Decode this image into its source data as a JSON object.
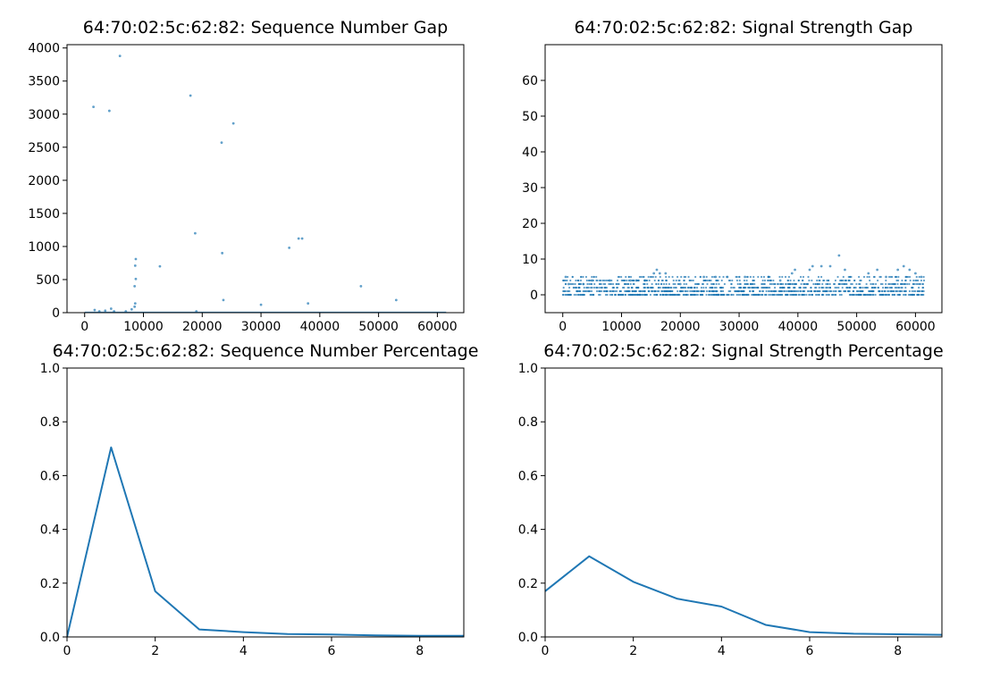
{
  "chart_data": [
    {
      "type": "scatter",
      "title": "64:70:02:5c:62:82: Sequence Number Gap",
      "xlabel": "",
      "ylabel": "",
      "xlim": [
        -3000,
        64500
      ],
      "ylim": [
        0,
        4050
      ],
      "xticks": [
        0,
        10000,
        20000,
        30000,
        40000,
        50000,
        60000
      ],
      "yticks": [
        0,
        500,
        1000,
        1500,
        2000,
        2500,
        3000,
        3500,
        4000
      ],
      "grid": false,
      "marker_color": "#1f77b4",
      "baseline_band": {
        "from_x": 0,
        "to_x": 61500,
        "y": 0
      },
      "points": [
        [
          1500,
          3110
        ],
        [
          1700,
          40
        ],
        [
          2500,
          20
        ],
        [
          3500,
          30
        ],
        [
          4200,
          3050
        ],
        [
          4500,
          60
        ],
        [
          5000,
          20
        ],
        [
          6000,
          3880
        ],
        [
          7000,
          20
        ],
        [
          8000,
          50
        ],
        [
          8500,
          90
        ],
        [
          8600,
          140
        ],
        [
          8500,
          400
        ],
        [
          8700,
          510
        ],
        [
          8600,
          710
        ],
        [
          8700,
          810
        ],
        [
          12800,
          700
        ],
        [
          18000,
          3280
        ],
        [
          18800,
          1200
        ],
        [
          19000,
          20
        ],
        [
          23300,
          2570
        ],
        [
          23400,
          900
        ],
        [
          23600,
          190
        ],
        [
          25300,
          2860
        ],
        [
          30000,
          120
        ],
        [
          34800,
          980
        ],
        [
          36400,
          1120
        ],
        [
          37000,
          1120
        ],
        [
          38000,
          140
        ],
        [
          47000,
          400
        ],
        [
          53000,
          190
        ]
      ]
    },
    {
      "type": "scatter",
      "title": "64:70:02:5c:62:82: Signal Strength Gap",
      "xlabel": "",
      "ylabel": "",
      "xlim": [
        -3000,
        64500
      ],
      "ylim": [
        -5,
        70
      ],
      "xticks": [
        0,
        10000,
        20000,
        30000,
        40000,
        50000,
        60000
      ],
      "yticks": [
        0,
        10,
        20,
        30,
        40,
        50,
        60
      ],
      "grid": false,
      "marker_color": "#1f77b4",
      "generated_range": {
        "from_x": 0,
        "to_x": 61500,
        "y_min": 0,
        "y_max": 5
      },
      "points": [
        [
          500,
          5
        ],
        [
          1000,
          3
        ],
        [
          3500,
          3
        ],
        [
          5000,
          4
        ],
        [
          8000,
          4
        ],
        [
          11500,
          4
        ],
        [
          12500,
          4
        ],
        [
          14000,
          4
        ],
        [
          15500,
          6
        ],
        [
          16000,
          7
        ],
        [
          16500,
          6
        ],
        [
          17500,
          6
        ],
        [
          20000,
          3
        ],
        [
          24000,
          5
        ],
        [
          26000,
          5
        ],
        [
          28000,
          5
        ],
        [
          31000,
          5
        ],
        [
          35000,
          5
        ],
        [
          37000,
          4
        ],
        [
          39000,
          6
        ],
        [
          39500,
          7
        ],
        [
          42000,
          7
        ],
        [
          42500,
          8
        ],
        [
          44000,
          8
        ],
        [
          45500,
          8
        ],
        [
          47000,
          11
        ],
        [
          48000,
          7
        ],
        [
          52000,
          6
        ],
        [
          53500,
          7
        ],
        [
          55000,
          5
        ],
        [
          57000,
          7
        ],
        [
          58000,
          8
        ],
        [
          59000,
          7
        ],
        [
          60000,
          6
        ],
        [
          61000,
          5
        ]
      ]
    },
    {
      "type": "line",
      "title": "64:70:02:5c:62:82: Sequence Number Percentage",
      "xlabel": "",
      "ylabel": "",
      "xlim": [
        0,
        9
      ],
      "ylim": [
        0,
        1.0
      ],
      "xticks": [
        0,
        2,
        4,
        6,
        8
      ],
      "yticks": [
        0.0,
        0.2,
        0.4,
        0.6,
        0.8,
        1.0
      ],
      "grid": false,
      "line_color": "#1f77b4",
      "x": [
        0,
        1,
        2,
        3,
        4,
        5,
        6,
        7,
        8,
        9
      ],
      "values": [
        0.0,
        0.705,
        0.17,
        0.028,
        0.018,
        0.011,
        0.009,
        0.006,
        0.004,
        0.004
      ]
    },
    {
      "type": "line",
      "title": "64:70:02:5c:62:82: Signal Strength Percentage",
      "xlabel": "",
      "ylabel": "",
      "xlim": [
        0,
        9
      ],
      "ylim": [
        0,
        1.0
      ],
      "xticks": [
        0,
        2,
        4,
        6,
        8
      ],
      "yticks": [
        0.0,
        0.2,
        0.4,
        0.6,
        0.8,
        1.0
      ],
      "grid": false,
      "line_color": "#1f77b4",
      "x": [
        0,
        1,
        2,
        3,
        4,
        5,
        6,
        7,
        8,
        9
      ],
      "values": [
        0.17,
        0.3,
        0.205,
        0.142,
        0.113,
        0.045,
        0.018,
        0.012,
        0.01,
        0.008
      ]
    }
  ]
}
